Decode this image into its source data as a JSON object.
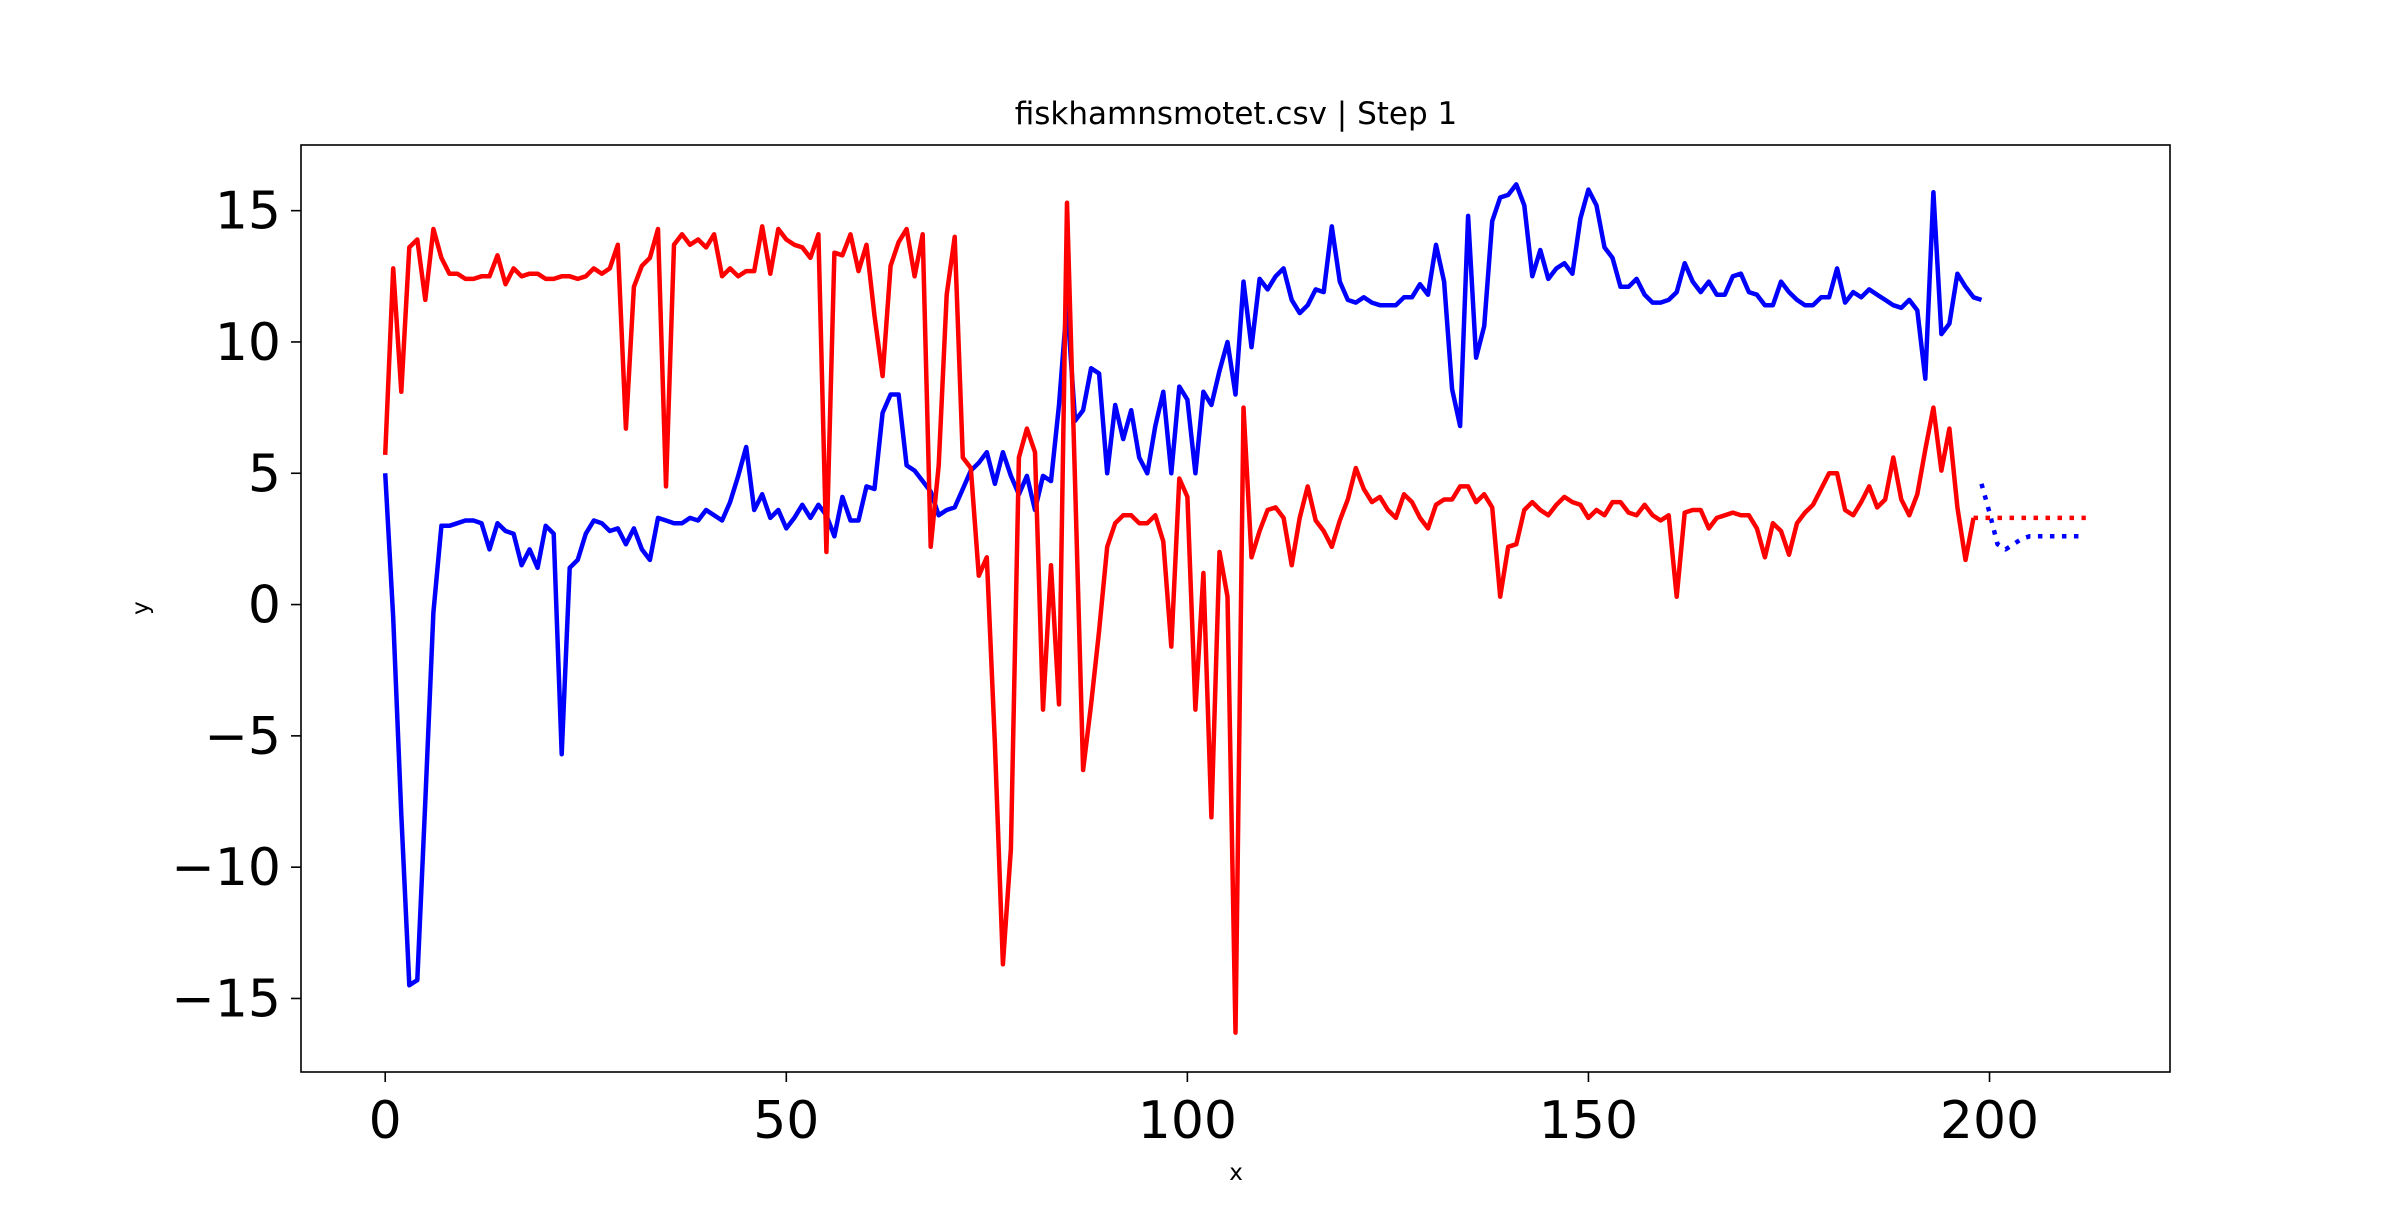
{
  "chart_data": {
    "type": "line",
    "title": "fiskhamnsmotet.csv | Step 1",
    "xlabel": "x",
    "ylabel": "y",
    "xlim": [
      -10.5,
      222.5
    ],
    "ylim": [
      -17.8,
      17.5
    ],
    "grid": false,
    "x_ticks": [
      0,
      50,
      100,
      150,
      200
    ],
    "x_tick_labels": [
      "0",
      "50",
      "100",
      "150",
      "200"
    ],
    "y_ticks": [
      -15,
      -10,
      -5,
      0,
      5,
      10,
      15
    ],
    "y_tick_labels": [
      "−15",
      "−10",
      "−5",
      "0",
      "5",
      "10",
      "15"
    ],
    "series": [
      {
        "color": "#0000ff",
        "style": "solid",
        "x": [
          0,
          1,
          2,
          3,
          4,
          5,
          6,
          7,
          8,
          9,
          10,
          11,
          12,
          13,
          14,
          15,
          16,
          17,
          18,
          19,
          20,
          21,
          22,
          23,
          24,
          25,
          26,
          27,
          28,
          29,
          30,
          31,
          32,
          33,
          34,
          35,
          36,
          37,
          38,
          39,
          40,
          41,
          42,
          43,
          44,
          45,
          46,
          47,
          48,
          49,
          50,
          51,
          52,
          53,
          54,
          55,
          56,
          57,
          58,
          59,
          60,
          61,
          62,
          63,
          64,
          65,
          66,
          67,
          68,
          69,
          70,
          71,
          72,
          73,
          74,
          75,
          76,
          77,
          78,
          79,
          80,
          81,
          82,
          83,
          84,
          85,
          86,
          87,
          88,
          89,
          90,
          91,
          92,
          93,
          94,
          95,
          96,
          97,
          98,
          99,
          100,
          101,
          102,
          103,
          104,
          105,
          106,
          107,
          108,
          109,
          110,
          111,
          112,
          113,
          114,
          115,
          116,
          117,
          118,
          119,
          120,
          121,
          122,
          123,
          124,
          125,
          126,
          127,
          128,
          129,
          130,
          131,
          132,
          133,
          134,
          135,
          136,
          137,
          138,
          139,
          140,
          141,
          142,
          143,
          144,
          145,
          146,
          147,
          148,
          149,
          150,
          151,
          152,
          153,
          154,
          155,
          156,
          157,
          158,
          159,
          160,
          161,
          162,
          163,
          164,
          165,
          166,
          167,
          168,
          169,
          170,
          171,
          172,
          173,
          174,
          175,
          176,
          177,
          178,
          179,
          180,
          181,
          182,
          183,
          184,
          185,
          186,
          187,
          188,
          189,
          190,
          191,
          192,
          193,
          194,
          195,
          196,
          197,
          198,
          199
        ],
        "y": [
          5.0,
          -0.5,
          -8.0,
          -14.5,
          -14.3,
          -7.5,
          -0.3,
          3.0,
          3.0,
          3.1,
          3.2,
          3.2,
          3.1,
          2.1,
          3.1,
          2.8,
          2.7,
          1.5,
          2.1,
          1.4,
          3.0,
          2.7,
          -5.7,
          1.4,
          1.7,
          2.7,
          3.2,
          3.1,
          2.8,
          2.9,
          2.3,
          2.9,
          2.1,
          1.7,
          3.3,
          3.2,
          3.1,
          3.1,
          3.3,
          3.2,
          3.6,
          3.4,
          3.2,
          3.9,
          4.9,
          6.0,
          3.6,
          4.2,
          3.3,
          3.6,
          2.9,
          3.3,
          3.8,
          3.3,
          3.8,
          3.4,
          2.6,
          4.1,
          3.2,
          3.2,
          4.5,
          4.4,
          7.3,
          8.0,
          8.0,
          5.3,
          5.1,
          4.7,
          4.3,
          3.4,
          3.6,
          3.7,
          4.4,
          5.1,
          5.4,
          5.8,
          4.6,
          5.8,
          4.9,
          4.2,
          4.9,
          3.6,
          4.9,
          4.7,
          7.6,
          11.5,
          7.0,
          7.4,
          9.0,
          8.8,
          5.0,
          7.6,
          6.3,
          7.4,
          5.6,
          5.0,
          6.8,
          8.1,
          5.0,
          8.3,
          7.8,
          5.0,
          8.1,
          7.6,
          8.9,
          10.0,
          8.0,
          12.3,
          9.8,
          12.4,
          12.0,
          12.5,
          12.8,
          11.6,
          11.1,
          11.4,
          12.0,
          11.9,
          14.4,
          12.3,
          11.6,
          11.5,
          11.7,
          11.5,
          11.4,
          11.4,
          11.4,
          11.7,
          11.7,
          12.2,
          11.8,
          13.7,
          12.3,
          8.2,
          6.8,
          14.8,
          9.4,
          10.6,
          14.6,
          15.5,
          15.6,
          16.0,
          15.2,
          12.5,
          13.5,
          12.4,
          12.8,
          13.0,
          12.6,
          14.7,
          15.8,
          15.2,
          13.6,
          13.2,
          12.1,
          12.1,
          12.4,
          11.8,
          11.5,
          11.5,
          11.6,
          11.9,
          13.0,
          12.3,
          11.9,
          12.3,
          11.8,
          11.8,
          12.5,
          12.6,
          11.9,
          11.8,
          11.4,
          11.4,
          12.3,
          11.9,
          11.6,
          11.4,
          11.4,
          11.7,
          11.7,
          12.8,
          11.5,
          11.9,
          11.7,
          12.0,
          11.8,
          11.6,
          11.4,
          11.3,
          11.6,
          11.2,
          8.6,
          15.7,
          10.3,
          10.7,
          12.6,
          12.1,
          11.7,
          11.6
        ]
      },
      {
        "color": "#0000ff",
        "style": "dotted",
        "x": [
          199,
          200,
          201,
          202,
          203,
          204,
          205,
          206,
          207,
          208,
          209,
          210,
          211,
          212
        ],
        "y": [
          4.6,
          3.5,
          2.3,
          2.1,
          2.3,
          2.5,
          2.6,
          2.6,
          2.6,
          2.6,
          2.6,
          2.6,
          2.6,
          2.6
        ]
      },
      {
        "color": "#ff0000",
        "style": "solid",
        "x": [
          0,
          1,
          2,
          3,
          4,
          5,
          6,
          7,
          8,
          9,
          10,
          11,
          12,
          13,
          14,
          15,
          16,
          17,
          18,
          19,
          20,
          21,
          22,
          23,
          24,
          25,
          26,
          27,
          28,
          29,
          30,
          31,
          32,
          33,
          34,
          35,
          36,
          37,
          38,
          39,
          40,
          41,
          42,
          43,
          44,
          45,
          46,
          47,
          48,
          49,
          50,
          51,
          52,
          53,
          54,
          55,
          56,
          57,
          58,
          59,
          60,
          61,
          62,
          63,
          64,
          65,
          66,
          67,
          68,
          69,
          70,
          71,
          72,
          73,
          74,
          75,
          76,
          77,
          78,
          79,
          80,
          81,
          82,
          83,
          84,
          85,
          86,
          87,
          88,
          89,
          90,
          91,
          92,
          93,
          94,
          95,
          96,
          97,
          98,
          99,
          100,
          101,
          102,
          103,
          104,
          105,
          106,
          107,
          108,
          109,
          110,
          111,
          112,
          113,
          114,
          115,
          116,
          117,
          118,
          119,
          120,
          121,
          122,
          123,
          124,
          125,
          126,
          127,
          128,
          129,
          130,
          131,
          132,
          133,
          134,
          135,
          136,
          137,
          138,
          139,
          140,
          141,
          142,
          143,
          144,
          145,
          146,
          147,
          148,
          149,
          150,
          151,
          152,
          153,
          154,
          155,
          156,
          157,
          158,
          159,
          160,
          161,
          162,
          163,
          164,
          165,
          166,
          167,
          168,
          169,
          170,
          171,
          172,
          173,
          174,
          175,
          176,
          177,
          178,
          179,
          180,
          181,
          182,
          183,
          184,
          185,
          186,
          187,
          188,
          189,
          190,
          191,
          192,
          193,
          194,
          195,
          196,
          197,
          198
        ],
        "y": [
          5.7,
          12.8,
          8.1,
          13.6,
          13.9,
          11.6,
          14.3,
          13.2,
          12.6,
          12.6,
          12.4,
          12.4,
          12.5,
          12.5,
          13.3,
          12.2,
          12.8,
          12.5,
          12.6,
          12.6,
          12.4,
          12.4,
          12.5,
          12.5,
          12.4,
          12.5,
          12.8,
          12.6,
          12.8,
          13.7,
          6.7,
          12.1,
          12.9,
          13.2,
          14.3,
          4.5,
          13.7,
          14.1,
          13.7,
          13.9,
          13.6,
          14.1,
          12.5,
          12.8,
          12.5,
          12.7,
          12.7,
          14.4,
          12.6,
          14.3,
          13.9,
          13.7,
          13.6,
          13.2,
          14.1,
          2.0,
          13.4,
          13.3,
          14.1,
          12.7,
          13.7,
          11.0,
          8.7,
          12.9,
          13.8,
          14.3,
          12.5,
          14.1,
          2.2,
          5.3,
          11.8,
          14.0,
          5.6,
          5.2,
          1.1,
          1.8,
          -5.3,
          -13.7,
          -9.3,
          5.6,
          6.7,
          5.8,
          -4.0,
          1.5,
          -3.8,
          15.3,
          4.6,
          -6.3,
          -3.8,
          -1.0,
          2.2,
          3.1,
          3.4,
          3.4,
          3.1,
          3.1,
          3.4,
          2.4,
          -1.6,
          4.8,
          4.1,
          -4.0,
          1.2,
          -8.1,
          2.0,
          0.3,
          -16.3,
          7.5,
          1.8,
          2.8,
          3.6,
          3.7,
          3.3,
          1.5,
          3.3,
          4.5,
          3.2,
          2.8,
          2.2,
          3.2,
          4.0,
          5.2,
          4.4,
          3.9,
          4.1,
          3.6,
          3.3,
          4.2,
          3.9,
          3.3,
          2.9,
          3.8,
          4.0,
          4.0,
          4.5,
          4.5,
          3.9,
          4.2,
          3.7,
          0.3,
          2.2,
          2.3,
          3.6,
          3.9,
          3.6,
          3.4,
          3.8,
          4.1,
          3.9,
          3.8,
          3.3,
          3.6,
          3.4,
          3.9,
          3.9,
          3.5,
          3.4,
          3.8,
          3.4,
          3.2,
          3.4,
          0.3,
          3.5,
          3.6,
          3.6,
          2.9,
          3.3,
          3.4,
          3.5,
          3.4,
          3.4,
          2.9,
          1.8,
          3.1,
          2.8,
          1.9,
          3.1,
          3.5,
          3.8,
          4.4,
          5.0,
          5.0,
          3.6,
          3.4,
          3.9,
          4.5,
          3.7,
          4.0,
          5.6,
          4.0,
          3.4,
          4.2,
          5.9,
          7.5,
          5.1,
          6.7,
          3.7,
          1.7,
          3.3
        ]
      },
      {
        "color": "#ff0000",
        "style": "dotted",
        "x": [
          198,
          200,
          202,
          204,
          206,
          208,
          210,
          212
        ],
        "y": [
          3.3,
          3.3,
          3.3,
          3.3,
          3.3,
          3.3,
          3.3,
          3.3
        ]
      }
    ]
  }
}
